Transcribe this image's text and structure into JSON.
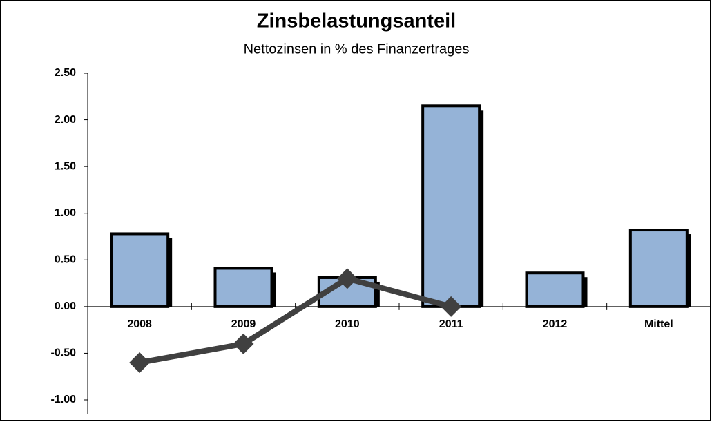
{
  "chart_data": {
    "type": "bar",
    "title": "Zinsbelastungsanteil",
    "subtitle": "Nettozinsen in % des Finanzertrages",
    "categories": [
      "2008",
      "2009",
      "2010",
      "2011",
      "2012",
      "Mittel"
    ],
    "series": [
      {
        "type": "bar",
        "color": "#95b3d7",
        "values": [
          0.78,
          0.41,
          0.31,
          2.15,
          0.36,
          0.82
        ]
      },
      {
        "type": "line",
        "color": "#404040",
        "values": [
          -0.6,
          -0.4,
          0.3,
          0.0,
          null,
          null
        ]
      }
    ],
    "ylim": [
      -1,
      2.5
    ],
    "yticks": [
      {
        "value": -1,
        "label": "-1.00"
      },
      {
        "value": -0.5,
        "label": "-0.50"
      },
      {
        "value": 0,
        "label": "0.00"
      },
      {
        "value": 0.5,
        "label": "0.50"
      },
      {
        "value": 1,
        "label": "1.00"
      },
      {
        "value": 1.5,
        "label": "1.50"
      },
      {
        "value": 2,
        "label": "2.00"
      },
      {
        "value": 2.5,
        "label": "2.50"
      }
    ]
  }
}
